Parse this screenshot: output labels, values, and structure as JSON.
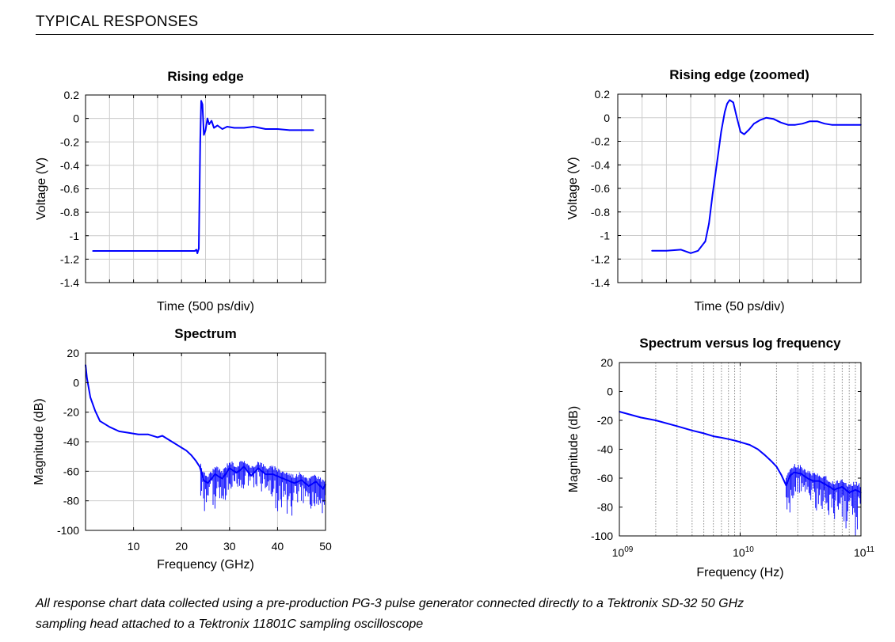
{
  "section_title": "TYPICAL RESPONSES",
  "caption": {
    "line1": "All response chart data collected using a pre-production PG-3 pulse generator connected directly to a Tektronix SD-32 50 GHz",
    "line2": "sampling head attached to a Tektronix 11801C sampling oscilloscope"
  },
  "colors": {
    "trace": "#0000ff",
    "grid": "#cccccc",
    "axis": "#000000"
  },
  "chart_data": [
    {
      "id": "rising-edge",
      "type": "line",
      "title": "Rising edge",
      "xlabel": "Time (500 ps/div)",
      "ylabel": "Voltage (V)",
      "xlim": [
        0,
        10
      ],
      "ylim": [
        -1.4,
        0.2
      ],
      "yticks": [
        0.2,
        0,
        -0.2,
        -0.4,
        -0.6,
        -0.8,
        -1,
        -1.2,
        -1.4
      ],
      "ytick_labels": [
        "0.2",
        "0",
        "-0.2",
        "-0.4",
        "-0.6",
        "-0.8",
        "-1",
        "-1.2",
        "-1.4"
      ],
      "xgrid": [
        1,
        2,
        3,
        4,
        5,
        6,
        7,
        8,
        9
      ],
      "grid": true,
      "series": [
        {
          "x": [
            0.3,
            1.0,
            2.0,
            3.0,
            4.0,
            4.55,
            4.62,
            4.66,
            4.72,
            4.78,
            4.82,
            4.87,
            4.93,
            5.0,
            5.08,
            5.15,
            5.25,
            5.35,
            5.5,
            5.7,
            5.9,
            6.2,
            6.6,
            7.0,
            7.5,
            8.0,
            8.5,
            9.0,
            9.5
          ],
          "y": [
            -1.13,
            -1.13,
            -1.13,
            -1.13,
            -1.13,
            -1.13,
            -1.12,
            -1.15,
            -1.11,
            -0.2,
            0.15,
            0.12,
            -0.14,
            -0.1,
            0.0,
            -0.05,
            -0.02,
            -0.08,
            -0.06,
            -0.09,
            -0.07,
            -0.08,
            -0.08,
            -0.07,
            -0.09,
            -0.09,
            -0.1,
            -0.1,
            -0.1
          ]
        }
      ]
    },
    {
      "id": "rising-edge-zoomed",
      "type": "line",
      "title": "Rising edge (zoomed)",
      "xlabel": "Time (50 ps/div)",
      "ylabel": "Voltage (V)",
      "xlim": [
        0,
        10
      ],
      "ylim": [
        -1.4,
        0.2
      ],
      "yticks": [
        0.2,
        0,
        -0.2,
        -0.4,
        -0.6,
        -0.8,
        -1,
        -1.2,
        -1.4
      ],
      "ytick_labels": [
        "0.2",
        "0",
        "-0.2",
        "-0.4",
        "-0.6",
        "-0.8",
        "-1",
        "-1.2",
        "-1.4"
      ],
      "xgrid": [
        1,
        2,
        3,
        4,
        5,
        6,
        7,
        8,
        9
      ],
      "grid": true,
      "series": [
        {
          "x": [
            1.4,
            2.0,
            2.6,
            3.0,
            3.3,
            3.6,
            3.75,
            3.9,
            4.1,
            4.25,
            4.4,
            4.5,
            4.6,
            4.75,
            4.9,
            5.05,
            5.2,
            5.4,
            5.6,
            5.85,
            6.1,
            6.4,
            6.7,
            7.0,
            7.3,
            7.6,
            7.9,
            8.2,
            8.5,
            8.8,
            9.1,
            9.4,
            9.7,
            10.0
          ],
          "y": [
            -1.13,
            -1.13,
            -1.12,
            -1.15,
            -1.13,
            -1.05,
            -0.9,
            -0.65,
            -0.35,
            -0.12,
            0.05,
            0.12,
            0.15,
            0.13,
            0.0,
            -0.12,
            -0.14,
            -0.1,
            -0.05,
            -0.02,
            0.0,
            -0.01,
            -0.04,
            -0.06,
            -0.06,
            -0.05,
            -0.03,
            -0.03,
            -0.05,
            -0.06,
            -0.06,
            -0.06,
            -0.06,
            -0.06
          ]
        }
      ]
    },
    {
      "id": "spectrum",
      "type": "line",
      "title": "Spectrum",
      "xlabel": "Frequency (GHz)",
      "ylabel": "Magnitude (dB)",
      "xlim": [
        0,
        50
      ],
      "ylim": [
        -100,
        20
      ],
      "xticks": [
        10,
        20,
        30,
        40,
        50
      ],
      "xtick_labels": [
        "10",
        "20",
        "30",
        "40",
        "50"
      ],
      "yticks": [
        20,
        0,
        -20,
        -40,
        -60,
        -80,
        -100
      ],
      "ytick_labels": [
        "20",
        "0",
        "-20",
        "-40",
        "-60",
        "-80",
        "-100"
      ],
      "grid": true,
      "series": [
        {
          "x": [
            0,
            0.3,
            1,
            2,
            3,
            5,
            7,
            9,
            11,
            13,
            15,
            16,
            18,
            19,
            20,
            21,
            22,
            23,
            23.8,
            24.6,
            25.5,
            27,
            28.5,
            30,
            31.5,
            33,
            34.5,
            36,
            37.5,
            39,
            40.5,
            42,
            43.5,
            45,
            46.5,
            48,
            49.5,
            50
          ],
          "y": [
            12,
            3,
            -10,
            -19,
            -26,
            -30,
            -33,
            -34,
            -35,
            -35,
            -37,
            -36,
            -40,
            -42,
            -44,
            -46,
            -49,
            -53,
            -57,
            -66,
            -68,
            -62,
            -65,
            -58,
            -61,
            -57,
            -63,
            -58,
            -62,
            -62,
            -64,
            -66,
            -68,
            -66,
            -70,
            -67,
            -72,
            -69
          ]
        }
      ],
      "noise_band": {
        "x": [
          24,
          25,
          26,
          27,
          28,
          29,
          30,
          31,
          32,
          33,
          34,
          35,
          36,
          37,
          38,
          39,
          40,
          41,
          42,
          43,
          44,
          45,
          46,
          47,
          48,
          49,
          50
        ],
        "lows": [
          -85,
          -88,
          -74,
          -90,
          -78,
          -83,
          -72,
          -76,
          -70,
          -74,
          -70,
          -72,
          -72,
          -78,
          -74,
          -80,
          -88,
          -84,
          -90,
          -92,
          -80,
          -86,
          -78,
          -90,
          -82,
          -94,
          -96
        ]
      }
    },
    {
      "id": "spectrum-log",
      "type": "line",
      "title": "Spectrum versus log frequency",
      "xlabel": "Frequency (Hz)",
      "ylabel": "Magnitude (dB)",
      "xscale": "log",
      "xlim": [
        1000000000.0,
        100000000000.0
      ],
      "ylim": [
        -100,
        20
      ],
      "xticks": [
        1000000000.0,
        10000000000.0,
        100000000000.0
      ],
      "xtick_labels": [
        {
          "base": "10",
          "exp": "09"
        },
        {
          "base": "10",
          "exp": "10"
        },
        {
          "base": "10",
          "exp": "11"
        }
      ],
      "yticks": [
        20,
        0,
        -20,
        -40,
        -60,
        -80,
        -100
      ],
      "ytick_labels": [
        "20",
        "0",
        "-20",
        "-40",
        "-60",
        "-80",
        "-100"
      ],
      "grid": "dotted vertical",
      "series": [
        {
          "x": [
            1000000000.0,
            1500000000.0,
            2000000000.0,
            3000000000.0,
            4000000000.0,
            5000000000.0,
            6000000000.0,
            7000000000.0,
            8000000000.0,
            9000000000.0,
            10000000000.0,
            12000000000.0,
            14000000000.0,
            16000000000.0,
            18000000000.0,
            20000000000.0,
            22000000000.0,
            24000000000.0,
            26000000000.0,
            28000000000.0,
            32000000000.0,
            36000000000.0,
            40000000000.0,
            45000000000.0,
            50000000000.0,
            55000000000.0,
            60000000000.0,
            70000000000.0,
            80000000000.0,
            90000000000.0,
            100000000000.0
          ],
          "y": [
            -14,
            -18,
            -20,
            -24,
            -27,
            -29,
            -31,
            -32,
            -33,
            -34,
            -35,
            -37,
            -40,
            -44,
            -48,
            -52,
            -58,
            -65,
            -58,
            -56,
            -57,
            -60,
            -62,
            -62,
            -64,
            -66,
            -68,
            -66,
            -70,
            -68,
            -70
          ]
        }
      ],
      "noise_band": {
        "x": [
          24000000000.0,
          26000000000.0,
          28000000000.0,
          30000000000.0,
          33000000000.0,
          36000000000.0,
          40000000000.0,
          44000000000.0,
          48000000000.0,
          52000000000.0,
          56000000000.0,
          60000000000.0,
          65000000000.0,
          70000000000.0,
          75000000000.0,
          80000000000.0,
          85000000000.0,
          90000000000.0,
          95000000000.0,
          100000000000.0
        ],
        "lows": [
          -82,
          -88,
          -76,
          -70,
          -74,
          -72,
          -80,
          -84,
          -88,
          -86,
          -92,
          -90,
          -94,
          -88,
          -96,
          -92,
          -98,
          -100,
          -94,
          -88
        ]
      }
    }
  ]
}
